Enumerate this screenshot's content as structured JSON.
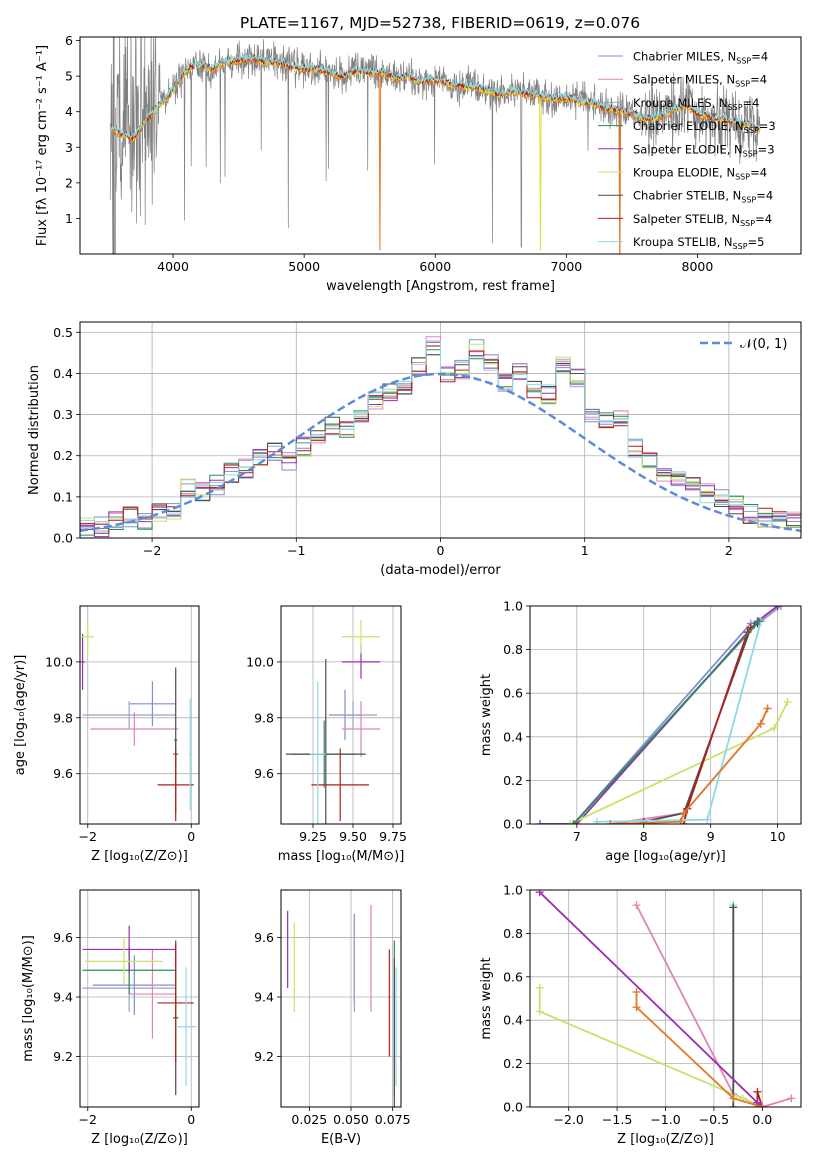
{
  "title": "PLATE=1167, MJD=52738, FIBERID=0619, z=0.076",
  "colors": [
    "#7f8fd0",
    "#e383b6",
    "#9aa4c3",
    "#2e8b57",
    "#9a2fb5",
    "#c8e36a",
    "#4d4d4d",
    "#b21f1f",
    "#8fd9e6"
  ],
  "spectrum_colors": {
    "data": "#808080",
    "model_1": "#e07b2c",
    "model_2": "#d9e03b",
    "model_3": "#7fdde6",
    "model_4": "#b21f1f"
  },
  "chart_data": [
    {
      "id": "spectrum",
      "type": "line",
      "xlabel": "wavelength [Angstrom, rest frame]",
      "ylabel": "Flux [fλ 10⁻¹⁷ erg cm⁻² s⁻¹ A⁻¹]",
      "xlim": [
        3290,
        8790
      ],
      "ylim": [
        0,
        6.1
      ],
      "xticks": [
        "4000",
        "5000",
        "6000",
        "7000",
        "8000"
      ],
      "yticks": [
        "1",
        "2",
        "3",
        "4",
        "5",
        "6"
      ],
      "grid": false,
      "legend_position": "right",
      "legend": [
        {
          "base": "Chabrier MILES, N",
          "sub": "SSP",
          "tail": "=4"
        },
        {
          "base": "Salpeter MILES, N",
          "sub": "SSP",
          "tail": "=4"
        },
        {
          "base": "Kroupa MILES, N",
          "sub": "SSP",
          "tail": "=4"
        },
        {
          "base": "Chabrier ELODIE, N",
          "sub": "SSP",
          "tail": "=3"
        },
        {
          "base": "Salpeter ELODIE, N",
          "sub": "SSP",
          "tail": "=3"
        },
        {
          "base": "Kroupa ELODIE, N",
          "sub": "SSP",
          "tail": "=4"
        },
        {
          "base": "Chabrier STELIB, N",
          "sub": "SSP",
          "tail": "=4"
        },
        {
          "base": "Salpeter STELIB, N",
          "sub": "SSP",
          "tail": "=4"
        },
        {
          "base": "Kroupa STELIB, N",
          "sub": "SSP",
          "tail": "=5"
        }
      ],
      "model_continuum": {
        "x": [
          3520,
          3600,
          3700,
          3800,
          3900,
          4000,
          4100,
          4200,
          4300,
          4400,
          4500,
          4600,
          4700,
          4800,
          4900,
          5000,
          5100,
          5200,
          5300,
          5400,
          5500,
          5600,
          5700,
          5800,
          5900,
          6000,
          6100,
          6200,
          6300,
          6400,
          6500,
          6600,
          6700,
          6800,
          6900,
          7000,
          7100,
          7200,
          7300,
          7400,
          7500,
          7600,
          7700,
          7800,
          7900,
          8000,
          8100,
          8200,
          8300,
          8400,
          8500
        ],
        "y": [
          3.55,
          3.4,
          3.25,
          3.8,
          4.2,
          4.6,
          5.2,
          5.35,
          5.2,
          5.4,
          5.45,
          5.5,
          5.42,
          5.4,
          5.28,
          5.22,
          5.2,
          5.1,
          5.0,
          5.15,
          5.12,
          5.1,
          4.95,
          5.0,
          4.85,
          4.9,
          4.8,
          4.72,
          4.7,
          4.6,
          4.5,
          4.6,
          4.5,
          4.45,
          4.35,
          4.4,
          4.3,
          4.25,
          4.1,
          4.05,
          3.95,
          3.8,
          3.85,
          4.0,
          4.2,
          3.95,
          3.85,
          3.8,
          3.7,
          3.65,
          3.5
        ]
      }
    },
    {
      "id": "residuals",
      "type": "step",
      "xlabel": "(data-model)/error",
      "ylabel": "Normed distribution",
      "xlim": [
        -2.5,
        2.5
      ],
      "ylim": [
        0,
        0.525
      ],
      "xticks": [
        -2,
        -1,
        0,
        1,
        2
      ],
      "yticks": [
        0.0,
        0.1,
        0.2,
        0.3,
        0.4,
        0.5
      ],
      "grid": true,
      "legend": [
        {
          "label": "𝒩(0, 1)",
          "style": "dashed",
          "color": "#5b8bd9"
        }
      ],
      "bin_edges_start": -2.5,
      "bin_width": 0.1,
      "mean_hist": [
        0.025,
        0.028,
        0.045,
        0.052,
        0.04,
        0.06,
        0.07,
        0.12,
        0.11,
        0.13,
        0.16,
        0.17,
        0.2,
        0.21,
        0.19,
        0.22,
        0.25,
        0.27,
        0.26,
        0.3,
        0.33,
        0.35,
        0.37,
        0.42,
        0.47,
        0.4,
        0.41,
        0.46,
        0.43,
        0.38,
        0.41,
        0.36,
        0.35,
        0.42,
        0.39,
        0.3,
        0.29,
        0.29,
        0.22,
        0.19,
        0.16,
        0.15,
        0.13,
        0.11,
        0.095,
        0.08,
        0.06,
        0.05,
        0.04,
        0.045
      ]
    },
    {
      "id": "age_vs_Z",
      "type": "errorbar",
      "xlabel": "Z [log₁₀(Z/Z⊙)]",
      "ylabel": "age  [log₁₀(age/yr)]",
      "xlim": [
        -2.15,
        0.15
      ],
      "ylim": [
        9.42,
        10.2
      ],
      "xticks": [
        "−2",
        "0"
      ],
      "yticks": [
        "9.6",
        "9.8",
        "10.0"
      ],
      "points": [
        {
          "x": -0.75,
          "xerr": 0.45,
          "y": 9.85,
          "yerr": 0.08,
          "color": 0
        },
        {
          "x": -1.1,
          "xerr": 0.85,
          "y": 9.76,
          "yerr": 0.06,
          "color": 1
        },
        {
          "x": -1.2,
          "xerr": 0.9,
          "y": 9.81,
          "yerr": 0.05,
          "color": 2
        },
        {
          "x": -0.3,
          "xerr": 0.05,
          "y": 9.67,
          "yerr": 0.05,
          "color": 3
        },
        {
          "x": -2.1,
          "xerr": 0.05,
          "y": 10.0,
          "yerr": 0.1,
          "color": 4
        },
        {
          "x": -2.0,
          "xerr": 0.12,
          "y": 10.09,
          "yerr": 0.06,
          "color": 5
        },
        {
          "x": -0.3,
          "xerr": 0.03,
          "y": 9.72,
          "yerr": 0.26,
          "color": 6
        },
        {
          "x": -0.3,
          "xerr": 0.35,
          "y": 9.56,
          "yerr": 0.13,
          "color": 7
        },
        {
          "x": -0.02,
          "xerr": 0.03,
          "y": 9.67,
          "yerr": 0.2,
          "color": 8
        }
      ]
    },
    {
      "id": "age_vs_mass",
      "type": "errorbar",
      "xlabel": "mass [log₁₀(M/M⊙)]",
      "xlim": [
        9.05,
        9.8
      ],
      "ylim": [
        9.42,
        10.2
      ],
      "xticks": [
        "9.25",
        "9.50",
        "9.75"
      ],
      "yticks": [
        "9.6",
        "9.8",
        "10.0"
      ],
      "points": [
        {
          "x": 9.45,
          "xerr": 0.1,
          "y": 9.81,
          "yerr": 0.09,
          "color": 0
        },
        {
          "x": 9.55,
          "xerr": 0.12,
          "y": 9.76,
          "yerr": 0.1,
          "color": 1
        },
        {
          "x": 9.5,
          "xerr": 0.15,
          "y": 9.81,
          "yerr": 0.05,
          "color": 2
        },
        {
          "x": 9.32,
          "xerr": 0.2,
          "y": 9.67,
          "yerr": 0.12,
          "color": 3
        },
        {
          "x": 9.55,
          "xerr": 0.12,
          "y": 10.0,
          "yerr": 0.06,
          "color": 4
        },
        {
          "x": 9.55,
          "xerr": 0.12,
          "y": 10.09,
          "yerr": 0.06,
          "color": 5
        },
        {
          "x": 9.33,
          "xerr": 0.25,
          "y": 9.67,
          "yerr": 0.34,
          "color": 6
        },
        {
          "x": 9.42,
          "xerr": 0.18,
          "y": 9.56,
          "yerr": 0.13,
          "color": 7
        },
        {
          "x": 9.28,
          "xerr": 0.05,
          "y": 9.67,
          "yerr": 0.26,
          "color": 8
        }
      ]
    },
    {
      "id": "cum_mass_age",
      "type": "line",
      "xlabel": "age  [log₁₀(age/yr)]",
      "ylabel": "mass weight",
      "xlim": [
        6.3,
        10.35
      ],
      "ylim": [
        0,
        1.0
      ],
      "xticks": [
        7,
        8,
        9,
        10
      ],
      "yticks": [
        "0.0",
        "0.2",
        "0.4",
        "0.6",
        "0.8",
        "1.0"
      ],
      "grid": true,
      "series": [
        {
          "color": 0,
          "x": [
            6.95,
            9.6,
            9.75,
            10.05
          ],
          "y": [
            0.0,
            0.92,
            0.93,
            1.0
          ]
        },
        {
          "color": 1,
          "x": [
            7.5,
            8.6,
            9.75,
            9.85
          ],
          "y": [
            0.0,
            0.05,
            0.46,
            0.53
          ]
        },
        {
          "color": 2,
          "x": [
            6.95,
            9.7,
            10.05
          ],
          "y": [
            0.0,
            0.92,
            1.0
          ]
        },
        {
          "color": 4,
          "x": [
            6.45,
            7.0,
            9.7,
            10.0
          ],
          "y": [
            0.0,
            0.0,
            0.93,
            1.0
          ]
        },
        {
          "color": 5,
          "x": [
            6.9,
            9.95,
            10.15
          ],
          "y": [
            0.0,
            0.44,
            0.56
          ]
        },
        {
          "color": 6,
          "x": [
            8.0,
            8.6,
            9.6,
            9.7
          ],
          "y": [
            0.01,
            0.05,
            0.9,
            0.92
          ]
        },
        {
          "color": 7,
          "x": [
            8.6,
            8.65,
            9.55,
            9.6
          ],
          "y": [
            0.0,
            0.07,
            0.88,
            0.9
          ]
        },
        {
          "color": 8,
          "x": [
            7.3,
            8.95,
            9.75
          ],
          "y": [
            0.01,
            0.02,
            0.93
          ]
        },
        {
          "color": 3,
          "x": [
            6.95,
            9.72
          ],
          "y": [
            0.0,
            0.93
          ]
        }
      ]
    },
    {
      "id": "mass_vs_Z",
      "type": "errorbar",
      "xlabel": "Z [log₁₀(Z/Z⊙)]",
      "ylabel": "mass [log₁₀(M/M⊙)]",
      "xlim": [
        -2.15,
        0.15
      ],
      "ylim": [
        9.03,
        9.76
      ],
      "xticks": [
        "−2",
        "0"
      ],
      "yticks": [
        "9.2",
        "9.4",
        "9.6"
      ],
      "points": [
        {
          "x": -1.1,
          "xerr": 0.8,
          "y": 9.44,
          "yerr": 0.1,
          "color": 0
        },
        {
          "x": -0.75,
          "xerr": 0.45,
          "y": 9.41,
          "yerr": 0.15,
          "color": 1
        },
        {
          "x": -1.2,
          "xerr": 0.9,
          "y": 9.43,
          "yerr": 0.08,
          "color": 2
        },
        {
          "x": -1.2,
          "xerr": 0.9,
          "y": 9.49,
          "yerr": 0.08,
          "color": 3
        },
        {
          "x": -1.2,
          "xerr": 0.9,
          "y": 9.56,
          "yerr": 0.08,
          "color": 4
        },
        {
          "x": -1.3,
          "xerr": 0.75,
          "y": 9.52,
          "yerr": 0.08,
          "color": 5
        },
        {
          "x": -0.3,
          "xerr": 0.05,
          "y": 9.33,
          "yerr": 0.26,
          "color": 6
        },
        {
          "x": -0.3,
          "xerr": 0.35,
          "y": 9.38,
          "yerr": 0.2,
          "color": 7
        },
        {
          "x": -0.1,
          "xerr": 0.2,
          "y": 9.3,
          "yerr": 0.2,
          "color": 8
        }
      ]
    },
    {
      "id": "mass_vs_ebv",
      "type": "errorbar",
      "xlabel": "E(B-V)",
      "xlim": [
        0.008,
        0.08
      ],
      "ylim": [
        9.03,
        9.76
      ],
      "xticks": [
        "0.025",
        "0.050",
        "0.075"
      ],
      "yticks": [
        "9.2",
        "9.4",
        "9.6"
      ],
      "points": [
        {
          "x": 0.052,
          "y": 9.53,
          "yerr": 0.15,
          "color": 0
        },
        {
          "x": 0.062,
          "y": 9.53,
          "yerr": 0.18,
          "color": 1
        },
        {
          "x": 0.052,
          "y": 9.5,
          "yerr": 0.15,
          "color": 2
        },
        {
          "x": 0.076,
          "y": 9.33,
          "yerr": 0.26,
          "color": 3
        },
        {
          "x": 0.012,
          "y": 9.56,
          "yerr": 0.13,
          "color": 4
        },
        {
          "x": 0.016,
          "y": 9.5,
          "yerr": 0.15,
          "color": 5
        },
        {
          "x": 0.076,
          "y": 9.28,
          "yerr": 0.25,
          "color": 6
        },
        {
          "x": 0.073,
          "y": 9.38,
          "yerr": 0.18,
          "color": 7
        },
        {
          "x": 0.077,
          "y": 9.3,
          "yerr": 0.2,
          "color": 8
        }
      ]
    },
    {
      "id": "cum_mass_Z",
      "type": "line",
      "xlabel": "Z [log₁₀(Z/Z⊙)]",
      "ylabel": "mass weight",
      "xlim": [
        -2.4,
        0.4
      ],
      "ylim": [
        0,
        1.0
      ],
      "xticks": [
        "−2.0",
        "−1.5",
        "−1.0",
        "−0.5",
        "0.0"
      ],
      "yticks": [
        "0.0",
        "0.2",
        "0.4",
        "0.6",
        "0.8",
        "1.0"
      ],
      "grid": true,
      "series": [
        {
          "color": 1,
          "x": [
            -1.3,
            -0.3,
            0.0,
            0.3
          ],
          "y": [
            0.93,
            0.06,
            0.0,
            0.04
          ]
        },
        {
          "color": 5,
          "x": [
            -2.3,
            -2.3,
            -0.2,
            0.0
          ],
          "y": [
            0.55,
            0.44,
            0.04,
            0.0
          ]
        },
        {
          "color": 8,
          "x": [
            -0.3,
            -0.3
          ],
          "y": [
            0.0,
            0.93
          ]
        },
        {
          "color": 6,
          "x": [
            -0.3,
            -0.3
          ],
          "y": [
            0.0,
            0.92
          ]
        },
        {
          "color": 7,
          "x": [
            -0.05,
            -0.05,
            0.0
          ],
          "y": [
            0.0,
            0.07,
            0.0
          ]
        },
        {
          "color": 4,
          "x": [
            -2.3,
            -0.05,
            0.0
          ],
          "y": [
            0.99,
            0.02,
            0.0
          ]
        }
      ]
    }
  ],
  "orange_series": {
    "age": {
      "x": [
        7.5,
        8.55,
        8.6,
        9.75,
        9.85
      ],
      "y": [
        0.0,
        0.01,
        0.05,
        0.46,
        0.53
      ]
    },
    "Z": {
      "x": [
        -1.3,
        -1.3,
        -0.3,
        0.0
      ],
      "y": [
        0.53,
        0.46,
        0.04,
        0.0
      ]
    }
  }
}
